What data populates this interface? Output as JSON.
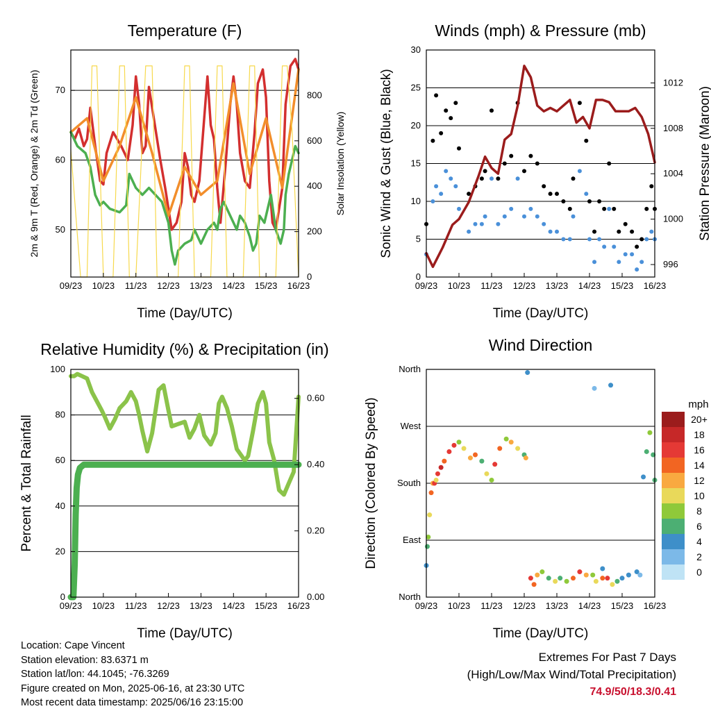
{
  "time_ticks": [
    "09/23",
    "10/23",
    "11/23",
    "12/23",
    "13/23",
    "14/23",
    "15/23",
    "16/23"
  ],
  "chart_data": [
    {
      "type": "line",
      "title": "Temperature (F)",
      "xlabel": "Time (Day/UTC)",
      "ylabel": "2m & 9m T (Red, Orange) & 2m Td (Green)",
      "y2label": "Solar Insolation (Yellow)",
      "xlim": [
        0,
        7
      ],
      "ylim": [
        43.2,
        75.8
      ],
      "y2lim": [
        0,
        1000
      ],
      "yticks": [
        50,
        60,
        70
      ],
      "y2ticks": [
        0,
        200,
        400,
        600,
        800
      ],
      "grid": true,
      "series": [
        {
          "color": "#d32f2f",
          "x": [
            0,
            0.12,
            0.25,
            0.4,
            0.5,
            0.6,
            0.75,
            0.9,
            1.0,
            1.1,
            1.3,
            1.55,
            1.75,
            1.9,
            2.0,
            2.1,
            2.2,
            2.3,
            2.4,
            2.55,
            2.75,
            2.9,
            3.0,
            3.1,
            3.25,
            3.4,
            3.5,
            3.6,
            3.7,
            3.8,
            3.95,
            4.1,
            4.2,
            4.3,
            4.4,
            4.5,
            4.6,
            4.75,
            4.9,
            5.0,
            5.1,
            5.2,
            5.35,
            5.5,
            5.65,
            5.75,
            5.9,
            6.0,
            6.1,
            6.2,
            6.3,
            6.5,
            6.6,
            6.75,
            6.9,
            7.0
          ],
          "values": [
            64,
            63,
            64.5,
            62,
            63,
            67.5,
            62,
            57,
            56.5,
            61,
            64,
            62,
            60,
            65,
            72,
            68,
            61,
            62,
            70.5,
            66,
            60,
            56,
            53,
            50,
            51,
            54,
            61,
            59,
            55,
            54,
            57,
            66,
            72,
            65,
            63,
            56,
            51,
            59,
            68,
            72,
            68,
            61,
            57,
            56,
            64,
            71,
            73,
            69,
            57,
            51,
            50,
            56,
            68,
            73.5,
            74.5,
            73
          ],
          "annotation": "2m temperature (red)"
        },
        {
          "color": "#f28e2b",
          "x": [
            0,
            0.5,
            1.0,
            1.5,
            2.0,
            2.5,
            3.0,
            3.5,
            4.0,
            4.5,
            5.0,
            5.5,
            6.0,
            6.5,
            7.0
          ],
          "values": [
            64,
            66,
            57,
            62,
            69,
            61,
            52,
            59,
            55,
            57,
            71,
            58,
            66,
            56,
            73
          ],
          "annotation": "9m temperature (orange)"
        },
        {
          "color": "#4caf50",
          "x": [
            0,
            0.2,
            0.45,
            0.6,
            0.75,
            0.9,
            1.0,
            1.2,
            1.5,
            1.7,
            1.8,
            2.0,
            2.2,
            2.4,
            2.6,
            2.8,
            3.0,
            3.1,
            3.2,
            3.3,
            3.5,
            3.7,
            3.8,
            4.0,
            4.2,
            4.4,
            4.5,
            4.6,
            4.7,
            4.9,
            5.1,
            5.2,
            5.35,
            5.5,
            5.6,
            5.7,
            5.8,
            5.95,
            6.05,
            6.15,
            6.3,
            6.45,
            6.55,
            6.6,
            6.7,
            6.8,
            6.9,
            7.0
          ],
          "values": [
            64,
            62,
            61,
            59,
            55,
            53.5,
            54,
            53,
            52.5,
            53.5,
            58,
            56,
            55,
            56,
            55,
            54,
            51,
            47,
            45,
            47,
            48,
            48.5,
            50,
            48,
            50,
            51,
            50,
            53,
            54,
            52,
            50,
            52,
            51,
            49,
            47,
            48,
            52,
            51,
            53,
            55,
            50,
            48,
            50,
            55,
            58,
            60,
            62,
            61
          ],
          "annotation": "2m dewpoint (green)"
        },
        {
          "color": "#f7d94c",
          "axis": "y2",
          "x": [
            0,
            0.3,
            0.5,
            0.65,
            0.8,
            1.0,
            1.3,
            1.5,
            1.65,
            1.8,
            2.0,
            2.3,
            2.5,
            2.65,
            2.8,
            3.0,
            3.3,
            3.5,
            3.65,
            3.8,
            4.0,
            4.3,
            4.5,
            4.65,
            4.8,
            5.0,
            5.3,
            5.5,
            5.65,
            5.8,
            6.0,
            6.3,
            6.5,
            6.65,
            6.8,
            7.0
          ],
          "values": [
            560,
            0,
            0,
            930,
            930,
            0,
            0,
            930,
            930,
            0,
            0,
            930,
            930,
            0,
            0,
            0,
            0,
            930,
            930,
            0,
            0,
            0,
            930,
            930,
            0,
            0,
            0,
            930,
            930,
            0,
            0,
            0,
            930,
            930,
            650,
            0
          ],
          "annotation": "solar insolation (yellow)"
        }
      ]
    },
    {
      "type": "scatter",
      "title": "Winds (mph) & Pressure (mb)",
      "xlabel": "Time (Day/UTC)",
      "ylabel": "Sonic Wind & Gust (Blue, Black)",
      "y2label": "Station Pressure (Maroon)",
      "xlim": [
        0,
        7
      ],
      "ylim": [
        0,
        30
      ],
      "y2lim": [
        994.9,
        1014.9
      ],
      "yticks": [
        0,
        5,
        10,
        15,
        20,
        25,
        30
      ],
      "y2ticks": [
        996,
        1000,
        1004,
        1008,
        1012
      ],
      "grid": true,
      "series": [
        {
          "color": "#000000",
          "x": [
            0,
            0.2,
            0.3,
            0.45,
            0.6,
            0.75,
            0.9,
            1.0,
            1.3,
            1.5,
            1.7,
            1.8,
            2.0,
            2.2,
            2.4,
            2.6,
            2.8,
            3.0,
            3.2,
            3.4,
            3.6,
            3.8,
            4.0,
            4.2,
            4.4,
            4.5,
            4.7,
            4.9,
            5.0,
            5.15,
            5.3,
            5.45,
            5.6,
            5.75,
            5.9,
            6.1,
            6.3,
            6.45,
            6.6,
            6.75,
            6.9,
            7.0
          ],
          "values": [
            7,
            18,
            24,
            19,
            22,
            21,
            23,
            17,
            11,
            12,
            13,
            14,
            22,
            13,
            15,
            16,
            23,
            14,
            16,
            15,
            12,
            11,
            11,
            10,
            9,
            13,
            23,
            18,
            10,
            6,
            10,
            9,
            15,
            9,
            6,
            7,
            6,
            4,
            5,
            9,
            12,
            9
          ],
          "annotation": "gust (black)"
        },
        {
          "color": "#4a90d9",
          "x": [
            0,
            0.2,
            0.3,
            0.45,
            0.6,
            0.75,
            0.9,
            1.0,
            1.3,
            1.5,
            1.7,
            1.8,
            2.0,
            2.2,
            2.4,
            2.6,
            2.8,
            3.0,
            3.2,
            3.4,
            3.6,
            3.8,
            4.0,
            4.2,
            4.4,
            4.5,
            4.7,
            4.9,
            5.0,
            5.15,
            5.3,
            5.45,
            5.6,
            5.75,
            5.9,
            6.1,
            6.3,
            6.45,
            6.6,
            6.75,
            6.9,
            7.0
          ],
          "values": [
            3,
            10,
            12,
            11,
            14,
            13,
            12,
            9,
            6,
            7,
            7,
            8,
            13,
            7,
            8,
            9,
            13,
            8,
            9,
            8,
            7,
            6,
            6,
            5,
            5,
            8,
            14,
            11,
            5,
            2,
            5,
            4,
            9,
            4,
            2,
            3,
            3,
            1,
            2,
            5,
            6,
            5
          ],
          "annotation": "sonic wind (blue)"
        },
        {
          "color": "#9b1c1c",
          "axis": "y2",
          "x": [
            0,
            0.2,
            0.5,
            0.8,
            1.0,
            1.3,
            1.6,
            1.8,
            2.0,
            2.2,
            2.4,
            2.6,
            2.8,
            3.0,
            3.2,
            3.4,
            3.6,
            3.8,
            4.0,
            4.2,
            4.4,
            4.6,
            4.8,
            5.0,
            5.2,
            5.4,
            5.6,
            5.8,
            6.0,
            6.2,
            6.4,
            6.6,
            6.8,
            7.0
          ],
          "values": [
            997,
            995.8,
            997.5,
            999.5,
            1000,
            1001.5,
            1003.8,
            1005.5,
            1004.5,
            1004,
            1007,
            1007.5,
            1010,
            1013.5,
            1012.5,
            1010,
            1009.5,
            1009.8,
            1009.5,
            1010,
            1010.5,
            1008.5,
            1009,
            1008,
            1010.5,
            1010.5,
            1010.3,
            1009.5,
            1009.5,
            1009.5,
            1009.8,
            1009,
            1007.5,
            1005
          ],
          "annotation": "station pressure (maroon)"
        }
      ]
    },
    {
      "type": "line",
      "title": "Relative Humidity (%) & Precipitation (in)",
      "xlabel": "Time (Day/UTC)",
      "ylabel": "Percent & Total Rainfall",
      "xlim": [
        0,
        7
      ],
      "ylim": [
        0,
        100
      ],
      "y2lim": [
        0,
        0.6875
      ],
      "yticks": [
        0,
        20,
        40,
        60,
        80,
        100
      ],
      "y2ticks": [
        0.0,
        0.2,
        0.4,
        0.6
      ],
      "grid": true,
      "series": [
        {
          "color": "#8bc34a",
          "x": [
            0,
            0.1,
            0.2,
            0.35,
            0.5,
            0.65,
            0.8,
            0.95,
            1.05,
            1.2,
            1.35,
            1.5,
            1.7,
            1.85,
            2.0,
            2.1,
            2.2,
            2.35,
            2.5,
            2.7,
            2.85,
            3.0,
            3.1,
            3.3,
            3.5,
            3.65,
            3.8,
            3.95,
            4.1,
            4.3,
            4.45,
            4.55,
            4.65,
            4.8,
            4.95,
            5.1,
            5.25,
            5.35,
            5.45,
            5.6,
            5.75,
            5.9,
            6.0,
            6.1,
            6.25,
            6.4,
            6.55,
            6.7,
            6.85,
            7.0
          ],
          "values": [
            97,
            97,
            98,
            97,
            96,
            90,
            86,
            82,
            79,
            74,
            78,
            83,
            86,
            90,
            86,
            80,
            73,
            64,
            72,
            91,
            93,
            82,
            75,
            76,
            77,
            70,
            74,
            80,
            71,
            67,
            72,
            85,
            88,
            83,
            75,
            65,
            62,
            60,
            62,
            73,
            85,
            90,
            85,
            68,
            60,
            47,
            45,
            50,
            55,
            88
          ],
          "annotation": "relative humidity (light green)"
        },
        {
          "color": "#4caf50",
          "axis": "y2",
          "x": [
            0,
            0.08,
            0.12,
            0.15,
            0.18,
            0.22,
            0.28,
            0.4,
            0.6,
            1.0,
            2.0,
            3.0,
            4.0,
            5.0,
            6.0,
            7.0
          ],
          "values": [
            0,
            0,
            0.1,
            0.25,
            0.33,
            0.37,
            0.39,
            0.4,
            0.4,
            0.4,
            0.4,
            0.4,
            0.4,
            0.4,
            0.4,
            0.4
          ],
          "annotation": "total precipitation (green)"
        }
      ]
    },
    {
      "type": "scatter",
      "title": "Wind Direction",
      "xlabel": "Time (Day/UTC)",
      "ylabel": "Direction (Colored By Speed)",
      "xlim": [
        0,
        7
      ],
      "ylim": [
        0,
        360
      ],
      "ytick_labels": [
        "North",
        "East",
        "South",
        "West",
        "North"
      ],
      "yticks": [
        0,
        90,
        180,
        270,
        360
      ],
      "grid": true,
      "colorbar": {
        "title": "mph",
        "labels": [
          "20+",
          "18",
          "16",
          "14",
          "12",
          "10",
          "8",
          "6",
          "4",
          "2",
          "0"
        ],
        "colors": [
          "#9b1c1c",
          "#c62828",
          "#e53935",
          "#f26522",
          "#f9a940",
          "#e9d95a",
          "#8fc93a",
          "#4caf73",
          "#3e8fc9",
          "#7cb9e8",
          "#bfe3f5"
        ]
      },
      "points": {
        "x": [
          0,
          0.03,
          0.06,
          0.1,
          0.15,
          0.2,
          0.25,
          0.3,
          0.35,
          0.45,
          0.55,
          0.7,
          0.85,
          1.0,
          1.15,
          1.35,
          1.5,
          1.7,
          1.85,
          2.0,
          2.1,
          2.25,
          2.45,
          2.6,
          2.8,
          3.0,
          3.05,
          3.2,
          3.3,
          3.4,
          3.55,
          3.75,
          3.95,
          4.1,
          4.3,
          4.5,
          4.7,
          4.9,
          5.1,
          5.2,
          5.4,
          5.55,
          5.7,
          5.85,
          6.0,
          6.2,
          6.45,
          6.55,
          6.65,
          6.75,
          6.85,
          6.95,
          7.0,
          5.15,
          5.65,
          3.1,
          5.4
        ],
        "values": [
          50,
          80,
          95,
          130,
          165,
          180,
          180,
          185,
          195,
          205,
          215,
          230,
          240,
          245,
          235,
          220,
          225,
          215,
          195,
          185,
          210,
          235,
          250,
          245,
          235,
          225,
          220,
          30,
          20,
          35,
          40,
          30,
          25,
          30,
          25,
          30,
          40,
          35,
          35,
          25,
          30,
          30,
          20,
          25,
          30,
          35,
          40,
          35,
          190,
          230,
          260,
          225,
          185,
          330,
          335,
          355,
          45
        ],
        "speed_mph": [
          4,
          6,
          8,
          10,
          14,
          12,
          15,
          10,
          16,
          18,
          14,
          15,
          16,
          8,
          10,
          12,
          14,
          6,
          10,
          8,
          16,
          14,
          8,
          12,
          10,
          6,
          12,
          16,
          14,
          12,
          8,
          6,
          10,
          6,
          8,
          14,
          16,
          12,
          8,
          10,
          14,
          16,
          10,
          6,
          4,
          4,
          4,
          2,
          4,
          6,
          8,
          6,
          6,
          2,
          4,
          4,
          4
        ]
      }
    }
  ],
  "info": {
    "location": "Location: Cape Vincent",
    "elevation": "Station elevation: 83.6371 m",
    "latlon": "Station lat/lon: 44.1045; -76.3269",
    "created": "Figure created on Mon, 2025-06-16, at 23:30 UTC",
    "recent": "Most recent data timestamp: 2025/06/16 23:15:00"
  },
  "extremes": {
    "title": "Extremes For Past 7 Days",
    "subtitle": "(High/Low/Max Wind/Total Precipitation)",
    "values": "74.9/50/18.3/0.41"
  }
}
